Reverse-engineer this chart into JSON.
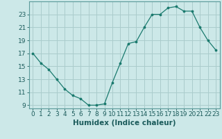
{
  "x": [
    0,
    1,
    2,
    3,
    4,
    5,
    6,
    7,
    8,
    9,
    10,
    11,
    12,
    13,
    14,
    15,
    16,
    17,
    18,
    19,
    20,
    21,
    22,
    23
  ],
  "y": [
    17,
    15.5,
    14.5,
    13,
    11.5,
    10.5,
    10,
    9,
    9,
    9.2,
    12.5,
    15.5,
    18.5,
    18.8,
    21,
    23,
    23,
    24,
    24.2,
    23.5,
    23.5,
    21,
    19,
    17.5
  ],
  "line_color": "#1a7a6e",
  "marker_color": "#1a7a6e",
  "bg_color": "#cce8e8",
  "grid_color": "#aacccc",
  "xlabel": "Humidex (Indice chaleur)",
  "xlim_lo": -0.5,
  "xlim_hi": 23.5,
  "ylim_lo": 8.5,
  "ylim_hi": 25.0,
  "yticks": [
    9,
    11,
    13,
    15,
    17,
    19,
    21,
    23
  ],
  "xticks": [
    0,
    1,
    2,
    3,
    4,
    5,
    6,
    7,
    8,
    9,
    10,
    11,
    12,
    13,
    14,
    15,
    16,
    17,
    18,
    19,
    20,
    21,
    22,
    23
  ],
  "xlabel_fontsize": 7.5,
  "tick_fontsize": 6.5,
  "tick_color": "#1a5a5a",
  "spine_color": "#5a9a9a"
}
